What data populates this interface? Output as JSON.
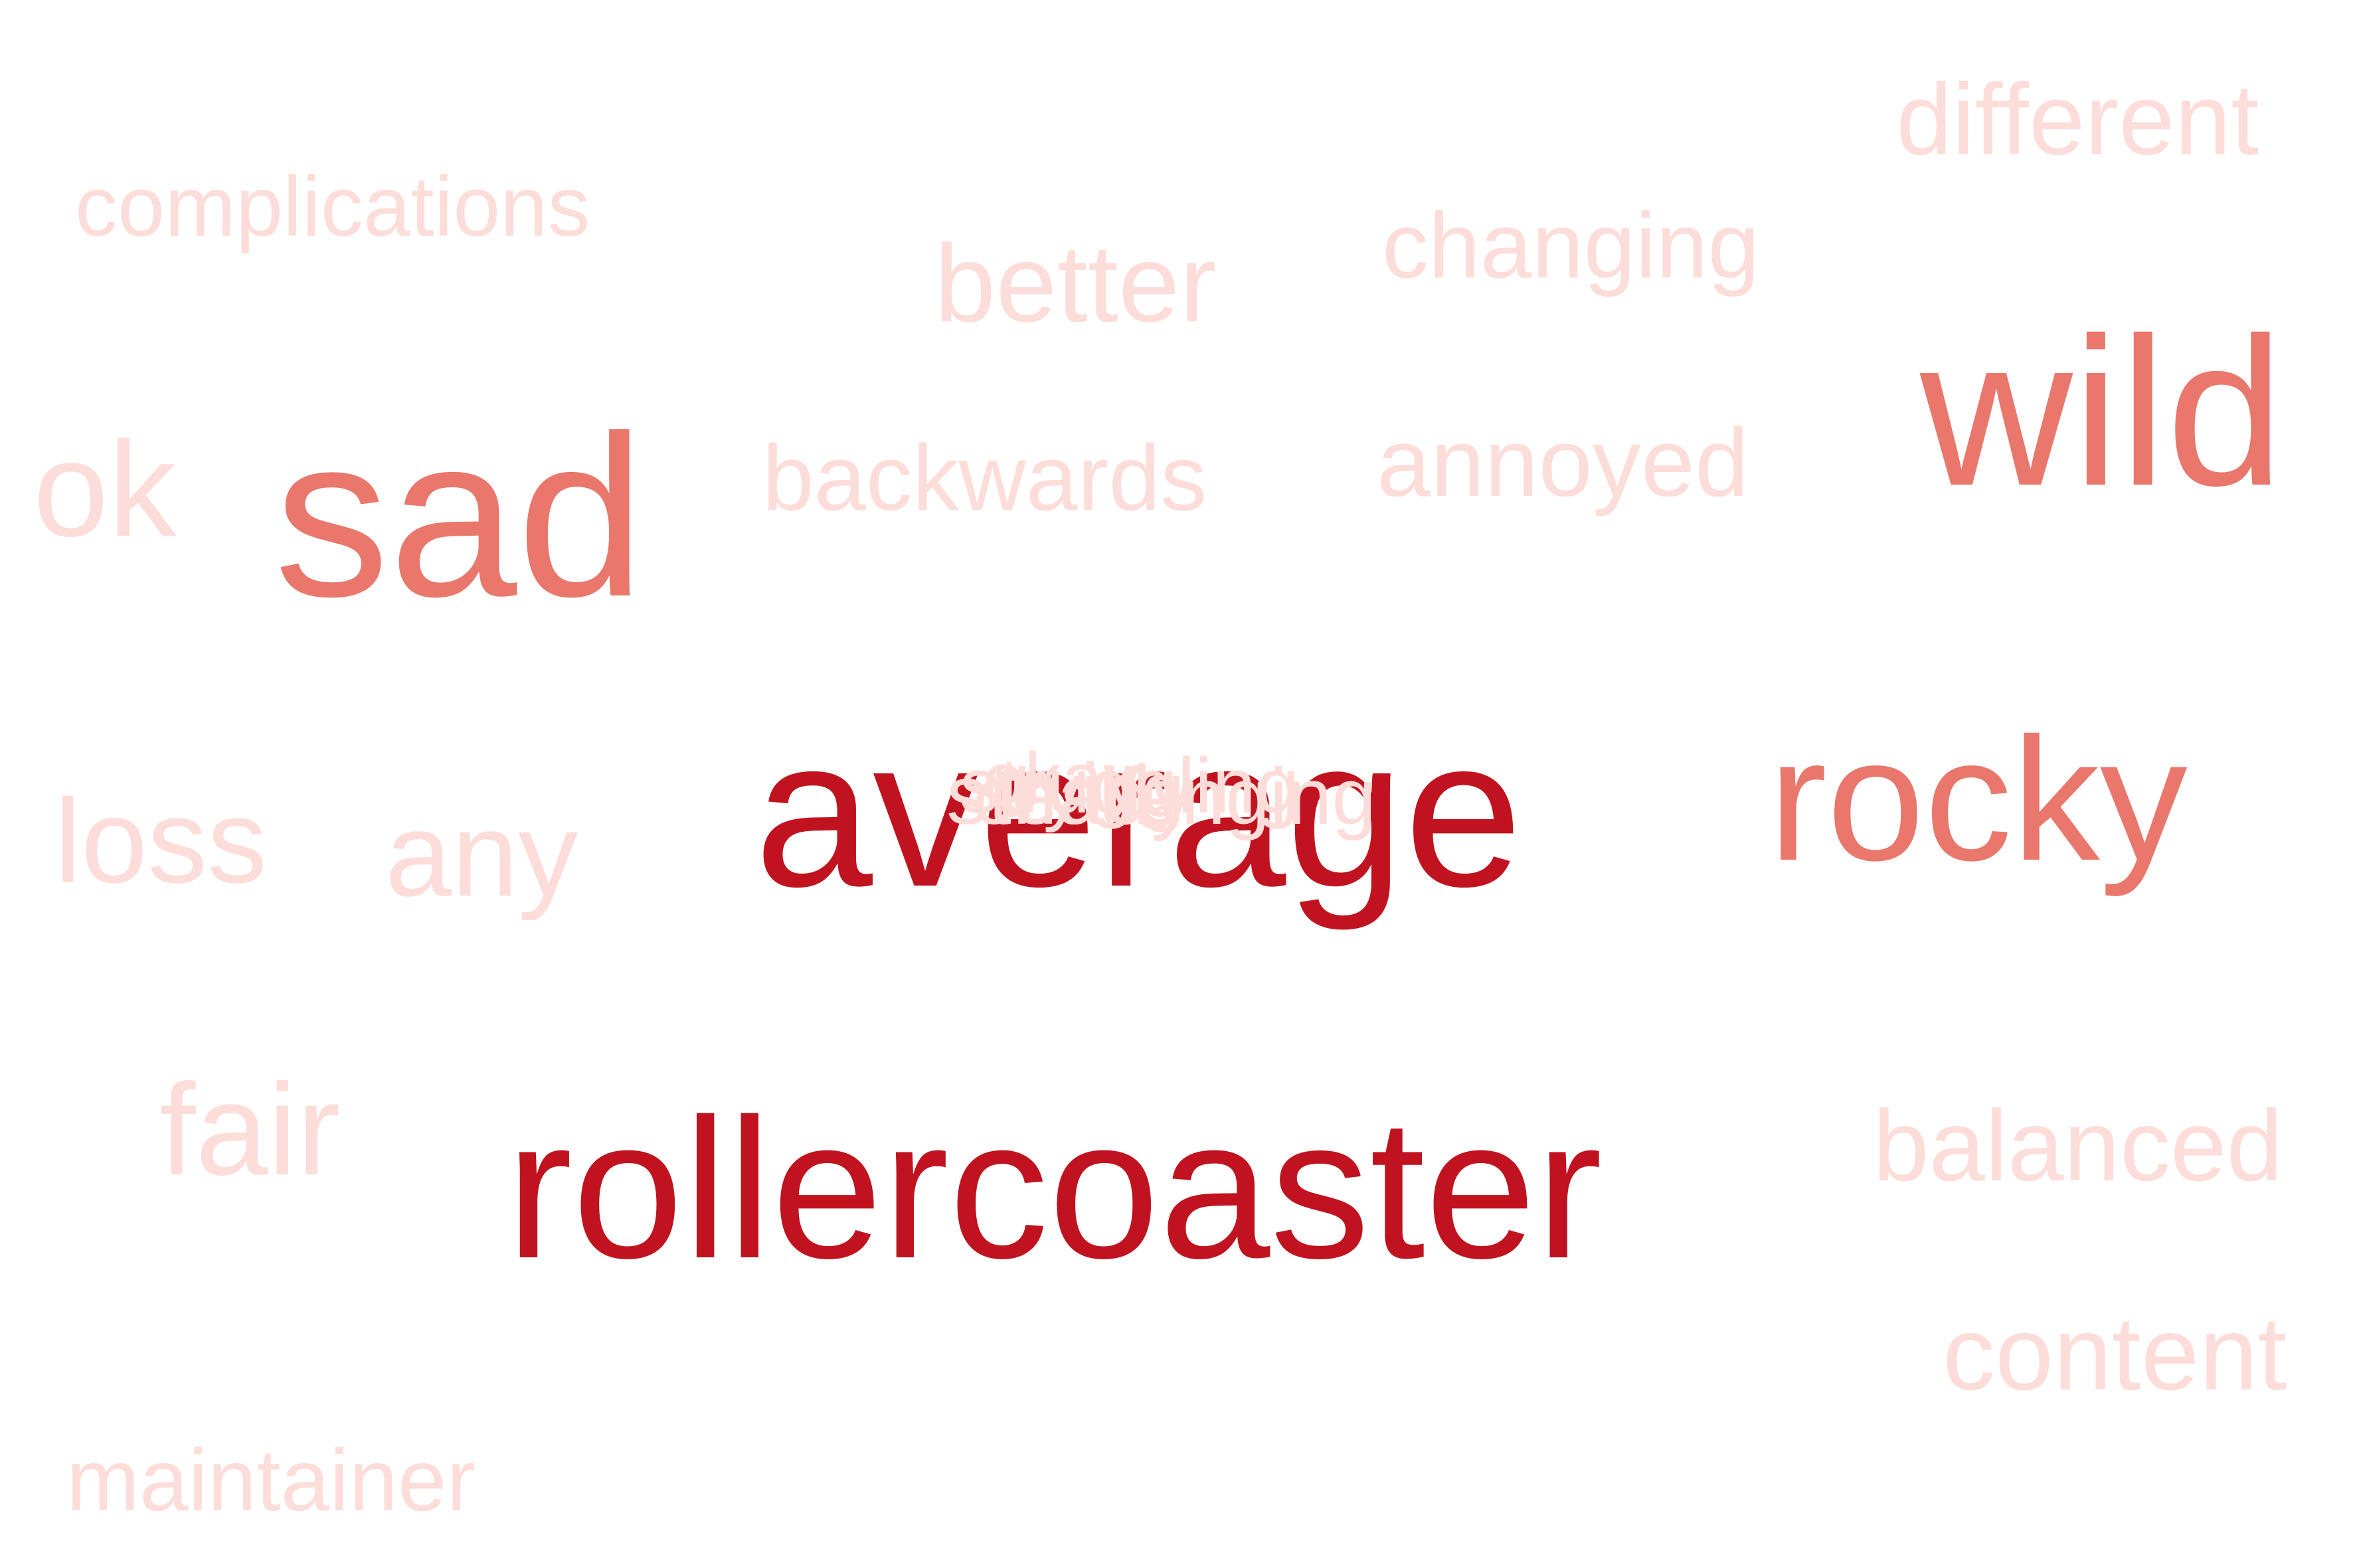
{
  "word_cloud": {
    "colors": {
      "dark": "#c0131f",
      "mid": "#e9776c",
      "light": "#fdddd9",
      "background": "#ffffff"
    },
    "words": {
      "different": "different",
      "complications": "complications",
      "changing": "changing",
      "better": "better",
      "wild": "wild",
      "ok": "ok",
      "sad": "sad",
      "backwards": "backwards",
      "annoyed": "annoyed",
      "average": "average",
      "rocky": "rocky",
      "loss": "loss",
      "any": "any",
      "fair": "fair",
      "rollercoaster": "rollercoaster",
      "balanced": "balanced",
      "content": "content",
      "maintainer": "maintainer"
    },
    "overlapping_words": [
      "steady",
      "struggling",
      "challenging",
      "okay",
      "trying"
    ]
  }
}
